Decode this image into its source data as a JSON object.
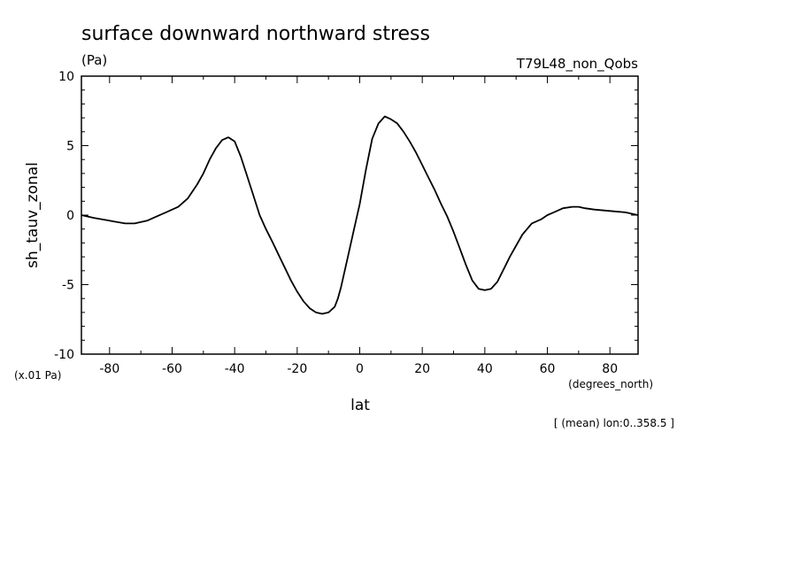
{
  "chart_data": {
    "type": "line",
    "title": "surface downward northward stress",
    "units": "(Pa)",
    "experiment": "T79L48_non_Qobs",
    "xlabel": "lat",
    "xunits": "(degrees_north)",
    "ylabel": "sh_tauv_zonal",
    "yscale_note": "(x.01 Pa)",
    "footnote": "[ (mean) lon:0..358.5 ]",
    "xlim": [
      -89,
      89
    ],
    "ylim": [
      -10,
      10
    ],
    "x_ticks": [
      "-80",
      "-60",
      "-40",
      "-20",
      "0",
      "20",
      "40",
      "60",
      "80"
    ],
    "x_tick_values": [
      -80,
      -60,
      -40,
      -20,
      0,
      20,
      40,
      60,
      80
    ],
    "y_ticks": [
      "10",
      "5",
      "0",
      "-5",
      "-10"
    ],
    "y_tick_values": [
      10,
      5,
      0,
      -5,
      -10
    ],
    "grid": false,
    "line_color": "#000000",
    "series": [
      {
        "x": [
          -89,
          -85,
          -80,
          -75,
          -72,
          -68,
          -65,
          -62,
          -58,
          -55,
          -52,
          -50,
          -48,
          -46,
          -44,
          -42,
          -40,
          -38,
          -36,
          -34,
          -32,
          -30,
          -28,
          -25,
          -22,
          -20,
          -18,
          -16,
          -14,
          -12,
          -10,
          -8,
          -7,
          -6,
          -4,
          -2,
          0,
          2,
          4,
          6,
          8,
          10,
          12,
          14,
          16,
          18,
          20,
          22,
          24,
          26,
          28,
          30,
          32,
          34,
          36,
          38,
          40,
          42,
          44,
          46,
          48,
          50,
          52,
          55,
          58,
          60,
          62,
          65,
          68,
          70,
          72,
          75,
          80,
          85,
          89
        ],
        "y": [
          0,
          -0.2,
          -0.4,
          -0.6,
          -0.6,
          -0.4,
          -0.1,
          0.2,
          0.6,
          1.2,
          2.2,
          3.0,
          4.0,
          4.8,
          5.4,
          5.6,
          5.3,
          4.2,
          2.8,
          1.4,
          0.0,
          -1.0,
          -1.9,
          -3.3,
          -4.7,
          -5.5,
          -6.2,
          -6.7,
          -7.0,
          -7.1,
          -7.0,
          -6.6,
          -6.0,
          -5.2,
          -3.2,
          -1.2,
          0.8,
          3.3,
          5.5,
          6.6,
          7.1,
          6.9,
          6.6,
          6.0,
          5.3,
          4.5,
          3.6,
          2.7,
          1.8,
          0.8,
          -0.1,
          -1.2,
          -2.4,
          -3.6,
          -4.7,
          -5.3,
          -5.4,
          -5.3,
          -4.8,
          -3.9,
          -3.0,
          -2.2,
          -1.4,
          -0.6,
          -0.3,
          0.0,
          0.2,
          0.5,
          0.6,
          0.6,
          0.5,
          0.4,
          0.3,
          0.2,
          0.0
        ]
      }
    ]
  }
}
